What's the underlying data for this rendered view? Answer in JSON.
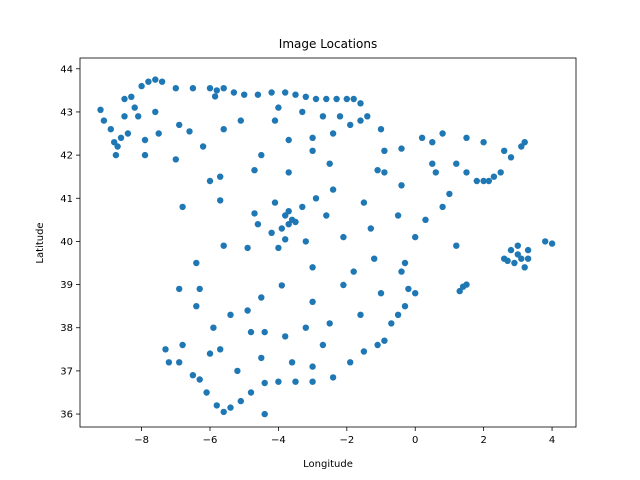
{
  "chart_data": {
    "type": "scatter",
    "title": "Image Locations",
    "xlabel": "Longitude",
    "ylabel": "Latitude",
    "xlim": [
      -9.8,
      4.7
    ],
    "ylim": [
      35.7,
      44.25
    ],
    "xticks": [
      -8,
      -6,
      -4,
      -2,
      0,
      2,
      4
    ],
    "yticks": [
      36,
      37,
      38,
      39,
      40,
      41,
      42,
      43,
      44
    ],
    "xtick_labels": [
      "−8",
      "−6",
      "−4",
      "−2",
      "0",
      "2",
      "4"
    ],
    "ytick_labels": [
      "36",
      "37",
      "38",
      "39",
      "40",
      "41",
      "42",
      "43",
      "44"
    ],
    "grid": false,
    "legend": "none",
    "marker_color": "#1f77b4",
    "series": [
      {
        "points": [
          [
            -9.2,
            43.05
          ],
          [
            -9.1,
            42.8
          ],
          [
            -8.9,
            42.6
          ],
          [
            -8.8,
            42.3
          ],
          [
            -8.7,
            42.2
          ],
          [
            -8.75,
            42.0
          ],
          [
            -8.6,
            42.4
          ],
          [
            -8.4,
            42.5
          ],
          [
            -8.5,
            43.3
          ],
          [
            -8.3,
            43.35
          ],
          [
            -8.0,
            43.6
          ],
          [
            -7.8,
            43.7
          ],
          [
            -7.6,
            43.75
          ],
          [
            -7.4,
            43.7
          ],
          [
            -7.0,
            43.55
          ],
          [
            -6.5,
            43.55
          ],
          [
            -6.0,
            43.55
          ],
          [
            -5.8,
            43.5
          ],
          [
            -5.6,
            43.55
          ],
          [
            -5.3,
            43.45
          ],
          [
            -5.0,
            43.4
          ],
          [
            -4.6,
            43.4
          ],
          [
            -4.2,
            43.45
          ],
          [
            -3.8,
            43.45
          ],
          [
            -3.5,
            43.4
          ],
          [
            -3.2,
            43.35
          ],
          [
            -2.9,
            43.3
          ],
          [
            -2.6,
            43.3
          ],
          [
            -2.3,
            43.3
          ],
          [
            -2.0,
            43.3
          ],
          [
            -1.8,
            43.3
          ],
          [
            -1.6,
            43.2
          ],
          [
            -1.4,
            42.9
          ],
          [
            -1.6,
            42.8
          ],
          [
            -1.9,
            42.7
          ],
          [
            -2.4,
            42.5
          ],
          [
            -2.7,
            42.9
          ],
          [
            -3.0,
            42.4
          ],
          [
            -3.7,
            42.35
          ],
          [
            -4.5,
            42.0
          ],
          [
            -5.6,
            42.6
          ],
          [
            -6.6,
            42.55
          ],
          [
            -7.5,
            42.5
          ],
          [
            -7.9,
            42.35
          ],
          [
            -7.6,
            43.0
          ],
          [
            -8.1,
            42.9
          ],
          [
            -6.2,
            42.2
          ],
          [
            -5.1,
            42.8
          ],
          [
            -4.1,
            42.8
          ],
          [
            -3.0,
            42.1
          ],
          [
            -0.9,
            42.1
          ],
          [
            -0.4,
            42.15
          ],
          [
            0.5,
            42.3
          ],
          [
            0.8,
            42.5
          ],
          [
            1.2,
            41.8
          ],
          [
            1.5,
            41.6
          ],
          [
            1.8,
            41.4
          ],
          [
            2.0,
            41.4
          ],
          [
            2.15,
            41.4
          ],
          [
            2.3,
            41.5
          ],
          [
            2.5,
            41.6
          ],
          [
            2.8,
            41.95
          ],
          [
            3.1,
            42.2
          ],
          [
            3.2,
            42.3
          ],
          [
            2.6,
            42.1
          ],
          [
            2.0,
            42.3
          ],
          [
            1.0,
            41.1
          ],
          [
            0.8,
            40.8
          ],
          [
            0.3,
            40.5
          ],
          [
            0.0,
            40.1
          ],
          [
            -0.3,
            39.5
          ],
          [
            -0.4,
            39.3
          ],
          [
            -0.2,
            38.9
          ],
          [
            0.0,
            38.8
          ],
          [
            -0.3,
            38.5
          ],
          [
            -0.5,
            38.3
          ],
          [
            -0.7,
            38.1
          ],
          [
            -0.9,
            37.7
          ],
          [
            -1.1,
            37.6
          ],
          [
            -1.5,
            37.45
          ],
          [
            -1.9,
            37.2
          ],
          [
            -2.4,
            36.85
          ],
          [
            -3.0,
            36.75
          ],
          [
            -3.5,
            36.75
          ],
          [
            -4.0,
            36.75
          ],
          [
            -4.4,
            36.72
          ],
          [
            -4.8,
            36.5
          ],
          [
            -5.1,
            36.3
          ],
          [
            -5.4,
            36.15
          ],
          [
            -5.6,
            36.05
          ],
          [
            -5.8,
            36.2
          ],
          [
            -6.1,
            36.5
          ],
          [
            -6.3,
            36.8
          ],
          [
            -6.5,
            36.9
          ],
          [
            -6.9,
            37.2
          ],
          [
            -7.2,
            37.2
          ],
          [
            -7.3,
            37.5
          ],
          [
            -6.0,
            37.4
          ],
          [
            -5.7,
            37.5
          ],
          [
            -4.8,
            37.9
          ],
          [
            -4.4,
            37.9
          ],
          [
            -3.8,
            37.8
          ],
          [
            -3.6,
            37.2
          ],
          [
            -2.5,
            38.1
          ],
          [
            -3.0,
            38.6
          ],
          [
            -3.9,
            38.98
          ],
          [
            -4.5,
            38.7
          ],
          [
            -5.4,
            38.3
          ],
          [
            -6.3,
            38.9
          ],
          [
            -6.4,
            38.5
          ],
          [
            -6.9,
            38.9
          ],
          [
            -6.4,
            39.5
          ],
          [
            -5.6,
            39.9
          ],
          [
            -4.9,
            39.85
          ],
          [
            -4.0,
            39.85
          ],
          [
            -3.0,
            39.4
          ],
          [
            -2.1,
            38.99
          ],
          [
            -1.8,
            39.3
          ],
          [
            -1.2,
            39.6
          ],
          [
            -1.3,
            40.3
          ],
          [
            -2.1,
            40.1
          ],
          [
            -3.7,
            40.4
          ],
          [
            -3.6,
            40.5
          ],
          [
            -3.8,
            40.6
          ],
          [
            -3.9,
            40.3
          ],
          [
            -3.5,
            40.45
          ],
          [
            -3.7,
            40.7
          ],
          [
            -4.1,
            40.9
          ],
          [
            -4.7,
            40.65
          ],
          [
            -5.7,
            40.95
          ],
          [
            -5.7,
            41.5
          ],
          [
            -4.7,
            41.65
          ],
          [
            -3.7,
            41.6
          ],
          [
            -2.5,
            41.8
          ],
          [
            -2.4,
            41.2
          ],
          [
            -1.1,
            41.65
          ],
          [
            -0.9,
            41.6
          ],
          [
            -0.4,
            41.3
          ],
          [
            0.6,
            41.6
          ],
          [
            -7.0,
            41.9
          ],
          [
            -6.8,
            40.8
          ],
          [
            -6.0,
            41.4
          ],
          [
            -7.9,
            42.0
          ],
          [
            -4.4,
            36.0
          ],
          [
            1.4,
            38.95
          ],
          [
            1.3,
            38.85
          ],
          [
            1.5,
            39.0
          ],
          [
            1.2,
            39.9
          ],
          [
            2.6,
            39.6
          ],
          [
            2.8,
            39.8
          ],
          [
            3.0,
            39.7
          ],
          [
            3.1,
            39.6
          ],
          [
            3.3,
            39.8
          ],
          [
            2.9,
            39.5
          ],
          [
            3.2,
            39.4
          ],
          [
            3.8,
            40.0
          ],
          [
            4.0,
            39.95
          ],
          [
            2.7,
            39.55
          ],
          [
            3.0,
            39.9
          ],
          [
            3.3,
            39.6
          ],
          [
            -8.5,
            42.9
          ],
          [
            -8.2,
            43.1
          ],
          [
            -6.9,
            42.7
          ],
          [
            -5.85,
            43.36
          ],
          [
            -4.0,
            43.1
          ],
          [
            -3.3,
            43.0
          ],
          [
            -2.2,
            42.9
          ],
          [
            -1.0,
            42.6
          ],
          [
            0.2,
            42.4
          ],
          [
            1.5,
            42.4
          ],
          [
            -4.2,
            40.2
          ],
          [
            -3.2,
            40.0
          ],
          [
            -2.6,
            40.6
          ],
          [
            -3.8,
            40.05
          ],
          [
            -4.6,
            40.4
          ],
          [
            -3.3,
            40.8
          ],
          [
            -2.9,
            41.0
          ],
          [
            -1.5,
            40.9
          ],
          [
            -0.5,
            40.6
          ],
          [
            -1.0,
            38.8
          ],
          [
            -2.7,
            37.6
          ],
          [
            -3.2,
            38.0
          ],
          [
            -4.9,
            38.4
          ],
          [
            -5.9,
            38.0
          ],
          [
            -6.8,
            37.6
          ],
          [
            -5.2,
            37.0
          ],
          [
            -4.5,
            37.3
          ],
          [
            -3.0,
            37.1
          ],
          [
            -1.6,
            38.3
          ],
          [
            0.5,
            41.8
          ]
        ]
      }
    ]
  }
}
